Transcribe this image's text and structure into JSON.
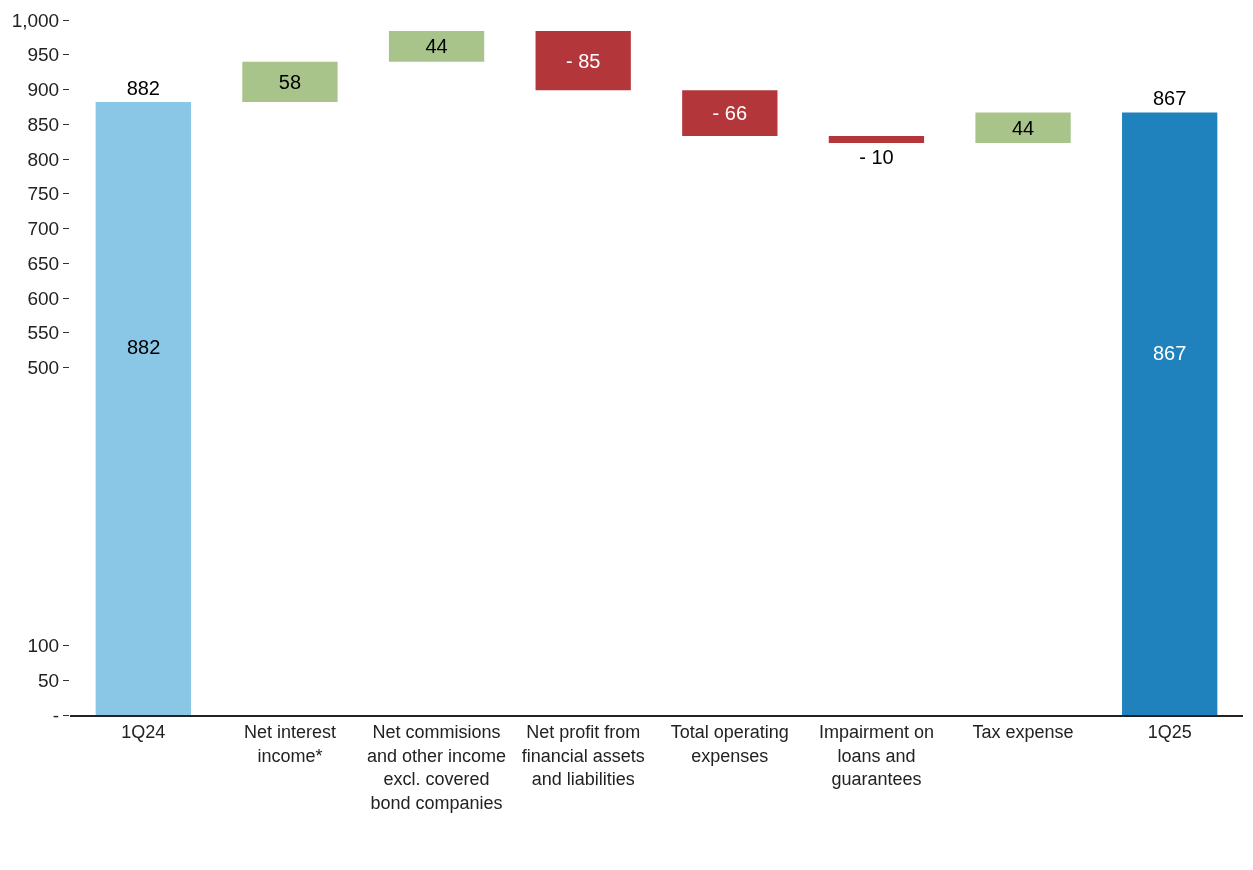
{
  "chart_data": {
    "type": "bar",
    "categories": [
      "1Q24",
      "Net interest income*",
      "Net commisions and other income excl. covered bond companies",
      "Net profit from financial assets and liabilities",
      "Total operating expenses",
      "Impairment on loans and guarantees",
      "Tax expense",
      "1Q25"
    ],
    "values": [
      882,
      58,
      44,
      -85,
      -66,
      -10,
      44,
      867
    ],
    "base": [
      null,
      882,
      940,
      984,
      899,
      833,
      823,
      null
    ],
    "colors": [
      "#8ac6e6",
      "#a9c48a",
      "#a9c48a",
      "#b3373a",
      "#b3373a",
      "#b3373a",
      "#a9c48a",
      "#1f82bd"
    ],
    "value_labels": [
      "882",
      "58",
      "44",
      "- 85",
      "- 66",
      "- 10",
      "44",
      "867"
    ],
    "annotations": [
      "882",
      "867"
    ],
    "ylim": [
      0,
      1000
    ],
    "yticks": [
      {
        "value": 0,
        "label": "-"
      },
      50,
      100,
      500,
      550,
      600,
      650,
      700,
      750,
      800,
      850,
      900,
      950,
      {
        "value": 1000,
        "label": "1,000"
      }
    ]
  }
}
